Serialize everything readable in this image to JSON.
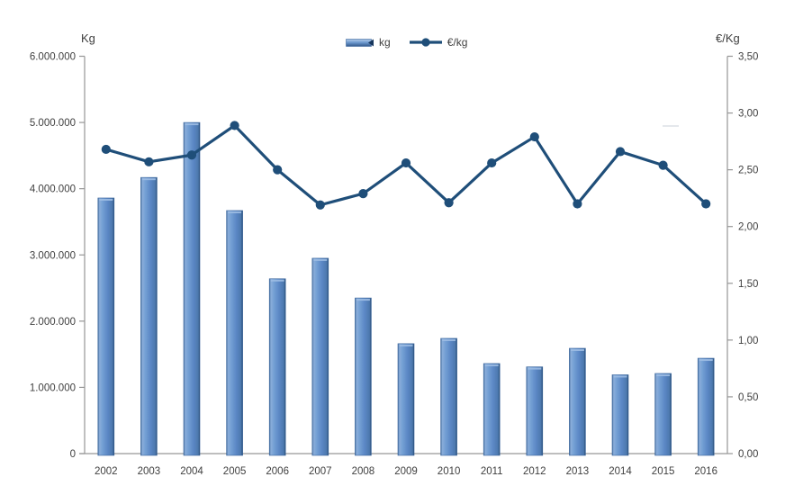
{
  "chart_data": {
    "type": "combo-bar-line",
    "categories": [
      "2002",
      "2003",
      "2004",
      "2005",
      "2006",
      "2007",
      "2008",
      "2009",
      "2010",
      "2011",
      "2012",
      "2013",
      "2014",
      "2015",
      "2016"
    ],
    "series": [
      {
        "name": "kg",
        "type": "bar",
        "axis": "left",
        "values": [
          3860000,
          4170000,
          5000000,
          3670000,
          2640000,
          2950000,
          2350000,
          1660000,
          1740000,
          1360000,
          1310000,
          1590000,
          1190000,
          1210000,
          1440000
        ]
      },
      {
        "name": "€/kg",
        "type": "line",
        "axis": "right",
        "values": [
          2.68,
          2.57,
          2.63,
          2.89,
          2.5,
          2.19,
          2.29,
          2.56,
          2.21,
          2.56,
          2.79,
          2.2,
          2.66,
          2.54,
          2.2
        ]
      }
    ],
    "left_axis": {
      "title": "Kg",
      "min": 0,
      "max": 6000000,
      "tick_interval": 1000000,
      "tick_labels": [
        "0",
        "1.000.000",
        "2.000.000",
        "3.000.000",
        "4.000.000",
        "5.000.000",
        "6.000.000"
      ]
    },
    "right_axis": {
      "title": "€/Kg",
      "min": 0,
      "max": 3.5,
      "tick_interval": 0.5,
      "tick_labels": [
        "0,00",
        "0,50",
        "1,00",
        "1,50",
        "2,00",
        "2,50",
        "3,00",
        "3,50"
      ]
    },
    "legend": {
      "position": "top-center",
      "entries": [
        "kg",
        "€/kg"
      ]
    },
    "grid": false,
    "colors": {
      "bar_edge_dark": "#24466e",
      "bar_light": "#8aadda",
      "bar_mid": "#5b87c5",
      "bar_shadow": "#466f9f",
      "bar_stroke": "#3a659c",
      "line": "#1f4e79",
      "axis": "#969696",
      "text": "#3f3f3f"
    }
  }
}
